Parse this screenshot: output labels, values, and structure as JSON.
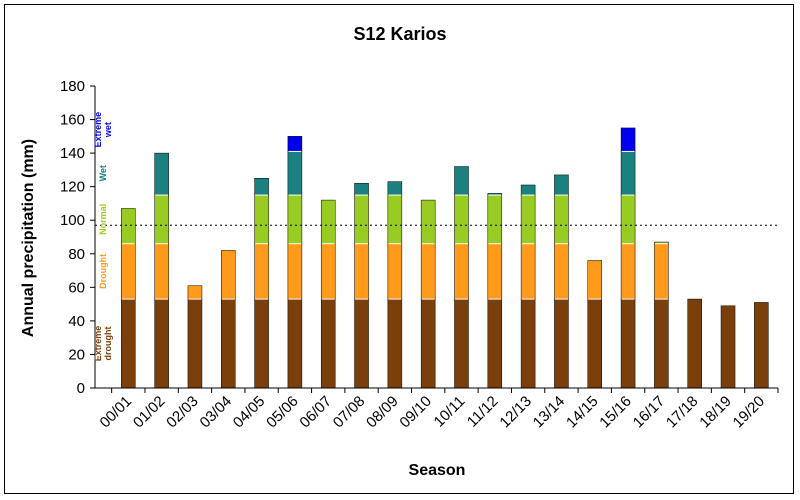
{
  "chart_data": {
    "type": "bar",
    "stacked": true,
    "title": "S12 Karios",
    "xlabel": "Season",
    "ylabel": "Annual precipitation (mm)",
    "ylim": [
      0,
      180
    ],
    "yticks": [
      0,
      20,
      40,
      60,
      80,
      100,
      120,
      140,
      160,
      180
    ],
    "grid": false,
    "reference_line": {
      "value": 97,
      "style": "dotted"
    },
    "categories": [
      "00/01",
      "01/02",
      "02/03",
      "03/04",
      "04/05",
      "05/06",
      "06/07",
      "07/08",
      "08/09",
      "09/10",
      "10/11",
      "11/12",
      "12/13",
      "13/14",
      "14/15",
      "15/16",
      "16/17",
      "17/18",
      "18/19",
      "19/20"
    ],
    "class_boundaries": [
      53,
      86,
      115,
      141
    ],
    "totals": [
      107,
      140,
      61,
      82,
      125,
      150,
      112,
      122,
      123,
      112,
      132,
      116,
      121,
      127,
      76,
      155,
      87,
      53,
      49,
      51
    ],
    "classes": [
      {
        "name": "Extreme drought",
        "lines": [
          "Extreme",
          "drought"
        ],
        "color": "#7b3f0c",
        "range": [
          0,
          53
        ]
      },
      {
        "name": "Drought",
        "lines": [
          "Drought"
        ],
        "color": "#ff9a1a",
        "range": [
          53,
          86
        ]
      },
      {
        "name": "Normal",
        "lines": [
          "Normal"
        ],
        "color": "#99cc22",
        "range": [
          86,
          115
        ]
      },
      {
        "name": "Wet",
        "lines": [
          "Wet"
        ],
        "color": "#1a8080",
        "range": [
          115,
          141
        ]
      },
      {
        "name": "Extreme wet",
        "lines": [
          "Extreme",
          "wet"
        ],
        "color": "#0000ee",
        "range": [
          141,
          180
        ]
      }
    ]
  }
}
